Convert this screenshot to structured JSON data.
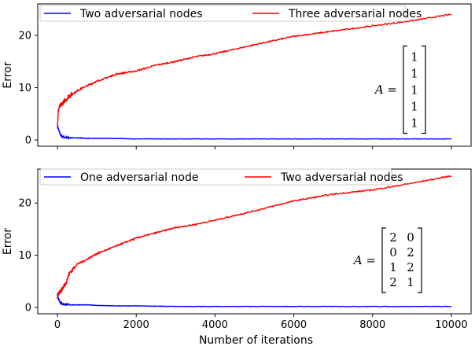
{
  "chart_data": [
    {
      "type": "line",
      "xlabel": "",
      "ylabel": "Error",
      "xlim": [
        -500,
        10500
      ],
      "ylim": [
        -1.2,
        26
      ],
      "xticks": [
        0,
        2000,
        4000,
        6000,
        8000,
        10000
      ],
      "yticks": [
        0,
        10,
        20
      ],
      "x_tick_labels_shown": false,
      "legend": "top-left",
      "series": [
        {
          "name": "Two adversarial nodes",
          "color": "#0000ff",
          "x": [
            0,
            20,
            50,
            80,
            120,
            200,
            300,
            500,
            800,
            1000,
            1500,
            2000,
            3000,
            4000,
            5000,
            6000,
            7000,
            8000,
            9000,
            10000
          ],
          "y": [
            3.0,
            2.2,
            1.5,
            1.0,
            0.7,
            0.5,
            0.4,
            0.4,
            0.3,
            0.3,
            0.3,
            0.2,
            0.2,
            0.2,
            0.2,
            0.2,
            0.2,
            0.2,
            0.2,
            0.2
          ]
        },
        {
          "name": "Three adversarial nodes",
          "color": "#ff0000",
          "x": [
            0,
            20,
            50,
            100,
            200,
            300,
            500,
            700,
            1000,
            1500,
            2000,
            2500,
            3000,
            3500,
            4000,
            5000,
            6000,
            7000,
            8000,
            9000,
            10000
          ],
          "y": [
            2.5,
            5.5,
            6.3,
            6.8,
            7.6,
            8.4,
            9.4,
            10.2,
            11.2,
            12.6,
            13.2,
            14.3,
            15.0,
            15.9,
            16.5,
            18.2,
            19.8,
            20.8,
            21.8,
            22.8,
            24.0
          ]
        }
      ],
      "annotation": {
        "lhs": "A =",
        "matrix": [
          [
            "1"
          ],
          [
            "1"
          ],
          [
            "1"
          ],
          [
            "1"
          ],
          [
            "1"
          ]
        ]
      }
    },
    {
      "type": "line",
      "xlabel": "Number of iterations",
      "ylabel": "Error",
      "xlim": [
        -500,
        10500
      ],
      "ylim": [
        -1.2,
        26.5
      ],
      "xticks": [
        0,
        2000,
        4000,
        6000,
        8000,
        10000
      ],
      "yticks": [
        0,
        10,
        20
      ],
      "x_tick_labels_shown": true,
      "legend": "top-left",
      "series": [
        {
          "name": "One adversarial node",
          "color": "#0000ff",
          "x": [
            0,
            20,
            50,
            80,
            120,
            200,
            300,
            500,
            800,
            1000,
            1500,
            2000,
            3000,
            4000,
            5000,
            6000,
            7000,
            8000,
            9000,
            10000
          ],
          "y": [
            2.5,
            1.8,
            1.3,
            0.9,
            0.7,
            0.6,
            0.5,
            0.5,
            0.5,
            0.4,
            0.3,
            0.3,
            0.2,
            0.2,
            0.2,
            0.2,
            0.2,
            0.2,
            0.2,
            0.2
          ]
        },
        {
          "name": "Two adversarial nodes",
          "color": "#ff0000",
          "x": [
            0,
            20,
            50,
            100,
            200,
            300,
            500,
            700,
            1000,
            1500,
            2000,
            2500,
            3000,
            3500,
            4000,
            5000,
            6000,
            7000,
            8000,
            9000,
            10000
          ],
          "y": [
            2.0,
            2.5,
            3.0,
            3.3,
            4.5,
            6.5,
            8.3,
            9.0,
            10.3,
            11.8,
            13.3,
            14.3,
            15.3,
            15.9,
            16.7,
            18.5,
            20.4,
            21.7,
            22.5,
            23.8,
            25.2
          ]
        }
      ],
      "annotation": {
        "lhs": "A =",
        "matrix": [
          [
            "2",
            "0"
          ],
          [
            "0",
            "2"
          ],
          [
            "1",
            "2"
          ],
          [
            "2",
            "1"
          ]
        ]
      }
    }
  ]
}
